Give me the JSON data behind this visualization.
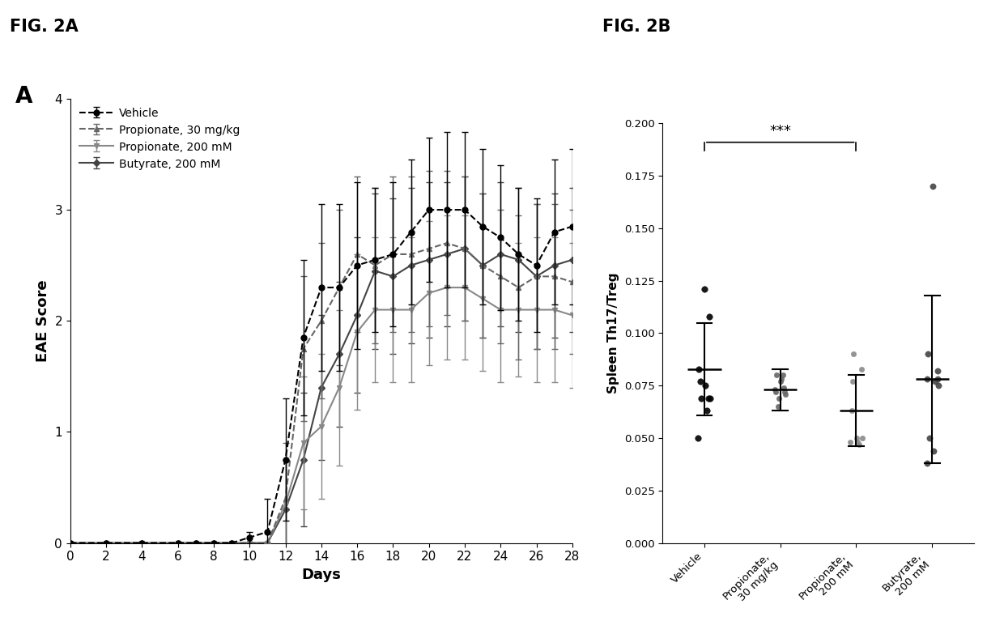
{
  "fig2a_title": "FIG. 2A",
  "fig2b_title": "FIG. 2B",
  "panel_a_label": "A",
  "days": [
    0,
    2,
    4,
    6,
    7,
    8,
    9,
    10,
    11,
    12,
    13,
    14,
    15,
    16,
    17,
    18,
    19,
    20,
    21,
    22,
    23,
    24,
    25,
    26,
    27,
    28
  ],
  "vehicle_mean": [
    0,
    0,
    0,
    0,
    0,
    0,
    0,
    0.05,
    0.1,
    0.75,
    1.85,
    2.3,
    2.3,
    2.5,
    2.55,
    2.6,
    2.8,
    3.0,
    3.0,
    3.0,
    2.85,
    2.75,
    2.6,
    2.5,
    2.8,
    2.85
  ],
  "vehicle_err": [
    0,
    0,
    0,
    0,
    0,
    0,
    0,
    0.05,
    0.3,
    0.55,
    0.7,
    0.75,
    0.75,
    0.75,
    0.65,
    0.65,
    0.65,
    0.65,
    0.7,
    0.7,
    0.7,
    0.65,
    0.6,
    0.6,
    0.65,
    0.7
  ],
  "prop30_mean": [
    0,
    0,
    0,
    0,
    0,
    0,
    0,
    0,
    0,
    0.4,
    1.75,
    2.0,
    2.3,
    2.6,
    2.5,
    2.6,
    2.6,
    2.65,
    2.7,
    2.65,
    2.5,
    2.4,
    2.3,
    2.4,
    2.4,
    2.35
  ],
  "prop30_err": [
    0,
    0,
    0,
    0,
    0,
    0,
    0,
    0,
    0,
    0.5,
    0.65,
    0.7,
    0.7,
    0.7,
    0.7,
    0.7,
    0.7,
    0.7,
    0.65,
    0.65,
    0.65,
    0.6,
    0.65,
    0.65,
    0.65,
    0.65
  ],
  "prop200_mean": [
    0,
    0,
    0,
    0,
    0,
    0,
    0,
    0,
    0,
    0.35,
    0.9,
    1.05,
    1.4,
    1.9,
    2.1,
    2.1,
    2.1,
    2.25,
    2.3,
    2.3,
    2.2,
    2.1,
    2.1,
    2.1,
    2.1,
    2.05
  ],
  "prop200_err": [
    0,
    0,
    0,
    0,
    0,
    0,
    0,
    0,
    0,
    0.4,
    0.6,
    0.65,
    0.7,
    0.7,
    0.65,
    0.65,
    0.65,
    0.65,
    0.65,
    0.65,
    0.65,
    0.65,
    0.6,
    0.65,
    0.65,
    0.65
  ],
  "but200_mean": [
    0,
    0,
    0,
    0,
    0,
    0,
    0,
    0,
    0,
    0.3,
    0.75,
    1.4,
    1.7,
    2.05,
    2.45,
    2.4,
    2.5,
    2.55,
    2.6,
    2.65,
    2.5,
    2.6,
    2.55,
    2.4,
    2.5,
    2.55
  ],
  "but200_err": [
    0,
    0,
    0,
    0,
    0,
    0,
    0,
    0,
    0,
    0.45,
    0.6,
    0.65,
    0.65,
    0.7,
    0.7,
    0.7,
    0.7,
    0.7,
    0.65,
    0.65,
    0.65,
    0.65,
    0.65,
    0.65,
    0.65,
    0.65
  ],
  "vehicle_color": "#000000",
  "prop30_color": "#666666",
  "prop200_color": "#888888",
  "but200_color": "#444444",
  "scatter_categories": [
    "Vehicle",
    "Propionate,\n30 mg/kg",
    "Propionate,\n200 mM",
    "Butyrate,\n200 mM"
  ],
  "vehicle_scatter": [
    0.083,
    0.108,
    0.121,
    0.077,
    0.069,
    0.069,
    0.063,
    0.05,
    0.069,
    0.075
  ],
  "vehicle_mean_b": 0.083,
  "vehicle_err_b": 0.022,
  "prop30_scatter": [
    0.072,
    0.08,
    0.078,
    0.073,
    0.071,
    0.065,
    0.074,
    0.077,
    0.08,
    0.072,
    0.069
  ],
  "prop30_mean_b": 0.073,
  "prop30_err_b": 0.01,
  "prop200_scatter": [
    0.09,
    0.083,
    0.077,
    0.05,
    0.048,
    0.047,
    0.05,
    0.063,
    0.048
  ],
  "prop200_mean_b": 0.063,
  "prop200_err_b": 0.017,
  "but200_scatter": [
    0.17,
    0.09,
    0.082,
    0.078,
    0.077,
    0.075,
    0.05,
    0.078,
    0.038,
    0.044
  ],
  "but200_mean_b": 0.078,
  "but200_err_b": 0.04,
  "scatter_colors": [
    "#000000",
    "#666666",
    "#888888",
    "#444444"
  ],
  "ylabel_a": "EAE Score",
  "xlabel_a": "Days",
  "ylim_a": [
    0,
    4
  ],
  "xlim_a": [
    0,
    28
  ],
  "ylabel_b": "Spleen Th17/Treg",
  "ylim_b": [
    0.0,
    0.2
  ],
  "yticks_b": [
    0.0,
    0.025,
    0.05,
    0.075,
    0.1,
    0.125,
    0.15,
    0.175,
    0.2
  ]
}
